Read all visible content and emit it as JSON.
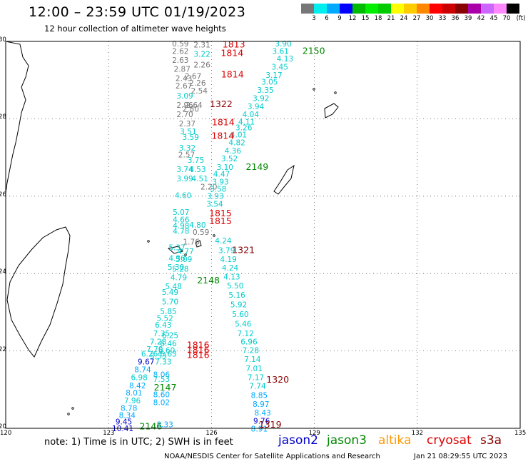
{
  "header": {
    "title": "12:00 – 23:59 UTC 01/19/2023",
    "subtitle": "12 hour collection of altimeter wave heights"
  },
  "colorbar": {
    "unit": "(ft)",
    "colors": [
      "#777777",
      "#00eeee",
      "#00aaff",
      "#0000ff",
      "#00bb00",
      "#00ee00",
      "#00cc00",
      "#ffff00",
      "#ffcc00",
      "#ff8800",
      "#ff0000",
      "#cc0000",
      "#880000",
      "#aa00aa",
      "#cc66ff",
      "#ff88ff",
      "#000000"
    ],
    "labels": [
      "3",
      "6",
      "9",
      "12",
      "15",
      "18",
      "21",
      "24",
      "27",
      "30",
      "33",
      "36",
      "39",
      "42",
      "45",
      "70"
    ]
  },
  "axes": {
    "lon_labels": [
      "120",
      "123",
      "126",
      "129",
      "132",
      "135"
    ],
    "lat_labels": [
      "30",
      "28",
      "26",
      "24",
      "22",
      "20"
    ]
  },
  "tracks": {
    "orbit_labels": [
      {
        "text": "1813",
        "color": "#dd0000",
        "lon": 126.32,
        "lat": 29.84
      },
      {
        "text": "1814",
        "color": "#dd0000",
        "lon": 126.27,
        "lat": 29.62
      },
      {
        "text": "2150",
        "color": "#008800",
        "lon": 128.65,
        "lat": 29.68
      },
      {
        "text": "1814",
        "color": "#dd0000",
        "lon": 126.28,
        "lat": 29.07
      },
      {
        "text": "1322",
        "color": "#880000",
        "lon": 125.95,
        "lat": 28.3
      },
      {
        "text": "1814",
        "color": "#dd0000",
        "lon": 126.01,
        "lat": 27.83
      },
      {
        "text": "1814",
        "color": "#dd0000",
        "lon": 126.0,
        "lat": 27.48
      },
      {
        "text": "2149",
        "color": "#008800",
        "lon": 127.0,
        "lat": 26.68
      },
      {
        "text": "1815",
        "color": "#dd0000",
        "lon": 125.93,
        "lat": 25.48
      },
      {
        "text": "1815",
        "color": "#dd0000",
        "lon": 125.93,
        "lat": 25.28
      },
      {
        "text": "1321",
        "color": "#880000",
        "lon": 126.6,
        "lat": 24.53
      },
      {
        "text": "2148",
        "color": "#008800",
        "lon": 125.58,
        "lat": 23.75
      },
      {
        "text": "1816",
        "color": "#dd0000",
        "lon": 125.28,
        "lat": 22.08
      },
      {
        "text": "1816",
        "color": "#dd0000",
        "lon": 125.28,
        "lat": 21.95
      },
      {
        "text": "1816",
        "color": "#dd0000",
        "lon": 125.28,
        "lat": 21.82
      },
      {
        "text": "1320",
        "color": "#880000",
        "lon": 127.6,
        "lat": 21.18
      },
      {
        "text": "2147",
        "color": "#008800",
        "lon": 124.32,
        "lat": 20.98
      },
      {
        "text": "2146",
        "color": "#008800",
        "lon": 123.9,
        "lat": 19.97
      },
      {
        "text": "1319",
        "color": "#880000",
        "lon": 127.38,
        "lat": 20.02
      }
    ],
    "track_a_top": [
      {
        "v": "0.59",
        "c": "#777777",
        "lon": 124.85,
        "lat": 29.87
      },
      {
        "v": "2.31",
        "c": "#777777",
        "lon": 125.48,
        "lat": 29.84
      },
      {
        "v": "2.62",
        "c": "#777777",
        "lon": 124.85,
        "lat": 29.68
      },
      {
        "v": "3.22",
        "c": "#00cccc",
        "lon": 125.48,
        "lat": 29.6
      },
      {
        "v": "2.63",
        "c": "#777777",
        "lon": 124.85,
        "lat": 29.45
      },
      {
        "v": "2.26",
        "c": "#777777",
        "lon": 125.48,
        "lat": 29.33
      },
      {
        "v": "2.87",
        "c": "#777777",
        "lon": 124.9,
        "lat": 29.22
      },
      {
        "v": "2.43",
        "c": "#777777",
        "lon": 124.95,
        "lat": 28.98
      },
      {
        "v": "2.67",
        "c": "#777777",
        "lon": 125.22,
        "lat": 29.03
      },
      {
        "v": "2.26",
        "c": "#777777",
        "lon": 125.35,
        "lat": 28.86
      },
      {
        "v": "2.67",
        "c": "#777777",
        "lon": 124.95,
        "lat": 28.78
      },
      {
        "v": "2.54",
        "c": "#777777",
        "lon": 125.4,
        "lat": 28.65
      },
      {
        "v": "3.09",
        "c": "#00cccc",
        "lon": 124.98,
        "lat": 28.52
      },
      {
        "v": "2.96",
        "c": "#777777",
        "lon": 124.98,
        "lat": 28.28
      },
      {
        "v": "2.64",
        "c": "#777777",
        "lon": 125.25,
        "lat": 28.28
      },
      {
        "v": "2.80",
        "c": "#777777",
        "lon": 125.15,
        "lat": 28.18
      },
      {
        "v": "2.70",
        "c": "#777777",
        "lon": 124.98,
        "lat": 28.04
      },
      {
        "v": "2.37",
        "c": "#777777",
        "lon": 125.05,
        "lat": 27.8
      },
      {
        "v": "3.51",
        "c": "#00cccc",
        "lon": 125.08,
        "lat": 27.6
      },
      {
        "v": "3.59",
        "c": "#00cccc",
        "lon": 125.15,
        "lat": 27.45
      },
      {
        "v": "3.32",
        "c": "#00cccc",
        "lon": 125.05,
        "lat": 27.18
      },
      {
        "v": "2.57",
        "c": "#777777",
        "lon": 125.03,
        "lat": 27.0
      },
      {
        "v": "3.75",
        "c": "#00cccc",
        "lon": 125.3,
        "lat": 26.86
      },
      {
        "v": "3.74",
        "c": "#00cccc",
        "lon": 124.98,
        "lat": 26.62
      },
      {
        "v": "4.53",
        "c": "#00cccc",
        "lon": 125.35,
        "lat": 26.62
      },
      {
        "v": "3.99",
        "c": "#00cccc",
        "lon": 124.98,
        "lat": 26.38
      },
      {
        "v": "4.51",
        "c": "#00cccc",
        "lon": 125.42,
        "lat": 26.38
      },
      {
        "v": "2.20",
        "c": "#777777",
        "lon": 125.68,
        "lat": 26.17
      },
      {
        "v": "4.60",
        "c": "#00cccc",
        "lon": 124.93,
        "lat": 25.95
      }
    ],
    "track_b": [
      {
        "v": "3.90",
        "c": "#00cccc",
        "lon": 127.85,
        "lat": 29.87
      },
      {
        "v": "3.61",
        "c": "#00cccc",
        "lon": 127.77,
        "lat": 29.68
      },
      {
        "v": "4.13",
        "c": "#00cccc",
        "lon": 127.9,
        "lat": 29.48
      },
      {
        "v": "3.45",
        "c": "#00cccc",
        "lon": 127.75,
        "lat": 29.27
      },
      {
        "v": "3.17",
        "c": "#00cccc",
        "lon": 127.58,
        "lat": 29.06
      },
      {
        "v": "3.05",
        "c": "#00cccc",
        "lon": 127.45,
        "lat": 28.88
      },
      {
        "v": "3.35",
        "c": "#00cccc",
        "lon": 127.33,
        "lat": 28.67
      },
      {
        "v": "3.92",
        "c": "#00cccc",
        "lon": 127.2,
        "lat": 28.46
      },
      {
        "v": "3.94",
        "c": "#00cccc",
        "lon": 127.05,
        "lat": 28.25
      },
      {
        "v": "4.04",
        "c": "#00cccc",
        "lon": 126.9,
        "lat": 28.04
      },
      {
        "v": "4.11",
        "c": "#00cccc",
        "lon": 126.78,
        "lat": 27.85
      },
      {
        "v": "3.26",
        "c": "#00cccc",
        "lon": 126.7,
        "lat": 27.7
      },
      {
        "v": "4.01",
        "c": "#00cccc",
        "lon": 126.55,
        "lat": 27.52
      },
      {
        "v": "4.82",
        "c": "#00cccc",
        "lon": 126.5,
        "lat": 27.32
      },
      {
        "v": "4.36",
        "c": "#00cccc",
        "lon": 126.38,
        "lat": 27.1
      },
      {
        "v": "3.52",
        "c": "#00cccc",
        "lon": 126.28,
        "lat": 26.9
      },
      {
        "v": "3.10",
        "c": "#00cccc",
        "lon": 126.15,
        "lat": 26.68
      },
      {
        "v": "4.47",
        "c": "#00cccc",
        "lon": 126.05,
        "lat": 26.5
      },
      {
        "v": "3.93",
        "c": "#00cccc",
        "lon": 126.02,
        "lat": 26.3
      },
      {
        "v": "3.58",
        "c": "#00cccc",
        "lon": 125.95,
        "lat": 26.12
      },
      {
        "v": "3.93",
        "c": "#00cccc",
        "lon": 125.87,
        "lat": 25.93
      },
      {
        "v": "3.54",
        "c": "#00cccc",
        "lon": 125.85,
        "lat": 25.73
      },
      {
        "v": "4.24",
        "c": "#00cccc",
        "lon": 126.1,
        "lat": 24.78
      },
      {
        "v": "3.79",
        "c": "#00cccc",
        "lon": 126.2,
        "lat": 24.53
      },
      {
        "v": "4.19",
        "c": "#00cccc",
        "lon": 126.25,
        "lat": 24.3
      },
      {
        "v": "4.24",
        "c": "#00cccc",
        "lon": 126.3,
        "lat": 24.08
      },
      {
        "v": "4.13",
        "c": "#00cccc",
        "lon": 126.35,
        "lat": 23.85
      },
      {
        "v": "5.50",
        "c": "#00cccc",
        "lon": 126.45,
        "lat": 23.62
      },
      {
        "v": "5.16",
        "c": "#00cccc",
        "lon": 126.5,
        "lat": 23.38
      },
      {
        "v": "5.92",
        "c": "#00cccc",
        "lon": 126.55,
        "lat": 23.13
      },
      {
        "v": "5.60",
        "c": "#00cccc",
        "lon": 126.6,
        "lat": 22.88
      },
      {
        "v": "5.46",
        "c": "#00cccc",
        "lon": 126.68,
        "lat": 22.63
      },
      {
        "v": "7.12",
        "c": "#00cccc",
        "lon": 126.75,
        "lat": 22.38
      },
      {
        "v": "6.96",
        "c": "#00cccc",
        "lon": 126.85,
        "lat": 22.17
      },
      {
        "v": "7.28",
        "c": "#00cccc",
        "lon": 126.9,
        "lat": 21.95
      },
      {
        "v": "7.14",
        "c": "#00cccc",
        "lon": 126.95,
        "lat": 21.72
      },
      {
        "v": "7.01",
        "c": "#00cccc",
        "lon": 127.0,
        "lat": 21.48
      },
      {
        "v": "7.17",
        "c": "#00cccc",
        "lon": 127.05,
        "lat": 21.25
      },
      {
        "v": "7.74",
        "c": "#00cccc",
        "lon": 127.1,
        "lat": 21.02
      },
      {
        "v": "8.85",
        "c": "#00aaff",
        "lon": 127.15,
        "lat": 20.78
      },
      {
        "v": "8.97",
        "c": "#00aaff",
        "lon": 127.2,
        "lat": 20.55
      },
      {
        "v": "8.43",
        "c": "#00aaff",
        "lon": 127.25,
        "lat": 20.33
      },
      {
        "v": "9.76",
        "c": "#0000cc",
        "lon": 127.22,
        "lat": 20.12
      },
      {
        "v": "8.91",
        "c": "#00aaff",
        "lon": 127.15,
        "lat": 19.92
      }
    ],
    "track_c": [
      {
        "v": "5.07",
        "c": "#00cccc",
        "lon": 124.87,
        "lat": 25.52
      },
      {
        "v": "4.66",
        "c": "#00cccc",
        "lon": 124.87,
        "lat": 25.32
      },
      {
        "v": "4.98",
        "c": "#00cccc",
        "lon": 124.87,
        "lat": 25.17
      },
      {
        "v": "4.78",
        "c": "#00cccc",
        "lon": 124.87,
        "lat": 25.03
      },
      {
        "v": "4.80",
        "c": "#00cccc",
        "lon": 125.35,
        "lat": 25.18
      },
      {
        "v": "0.59",
        "c": "#777777",
        "lon": 125.45,
        "lat": 25.0
      },
      {
        "v": "1.76",
        "c": "#777777",
        "lon": 125.17,
        "lat": 24.75
      },
      {
        "v": "4.77",
        "c": "#00cccc",
        "lon": 125.0,
        "lat": 24.5
      },
      {
        "v": "5.37",
        "c": "#00cccc",
        "lon": 124.75,
        "lat": 24.6
      },
      {
        "v": "4.36",
        "c": "#00cccc",
        "lon": 124.75,
        "lat": 24.33
      },
      {
        "v": "5.09",
        "c": "#00cccc",
        "lon": 124.95,
        "lat": 24.3
      },
      {
        "v": "5.30",
        "c": "#00cccc",
        "lon": 124.72,
        "lat": 24.1
      },
      {
        "v": "5.28",
        "c": "#00cccc",
        "lon": 124.85,
        "lat": 24.05
      },
      {
        "v": "4.79",
        "c": "#00cccc",
        "lon": 124.8,
        "lat": 23.83
      },
      {
        "v": "5.48",
        "c": "#00cccc",
        "lon": 124.65,
        "lat": 23.6
      },
      {
        "v": "5.49",
        "c": "#00cccc",
        "lon": 124.55,
        "lat": 23.45
      },
      {
        "v": "5.70",
        "c": "#00cccc",
        "lon": 124.55,
        "lat": 23.2
      },
      {
        "v": "5.85",
        "c": "#00cccc",
        "lon": 124.5,
        "lat": 22.95
      },
      {
        "v": "5.52",
        "c": "#00cccc",
        "lon": 124.4,
        "lat": 22.78
      },
      {
        "v": "6.43",
        "c": "#00cccc",
        "lon": 124.35,
        "lat": 22.6
      },
      {
        "v": "7.35",
        "c": "#00cccc",
        "lon": 124.3,
        "lat": 22.38
      },
      {
        "v": "6.25",
        "c": "#00cccc",
        "lon": 124.55,
        "lat": 22.33
      },
      {
        "v": "7.28",
        "c": "#00cccc",
        "lon": 124.2,
        "lat": 22.17
      },
      {
        "v": "6.46",
        "c": "#00cccc",
        "lon": 124.5,
        "lat": 22.12
      },
      {
        "v": "7.70",
        "c": "#00cccc",
        "lon": 124.1,
        "lat": 21.97
      },
      {
        "v": "6.60",
        "c": "#00cccc",
        "lon": 124.45,
        "lat": 21.95
      },
      {
        "v": "6.26",
        "c": "#00cccc",
        "lon": 123.95,
        "lat": 21.85
      },
      {
        "v": "5.53",
        "c": "#00cccc",
        "lon": 124.2,
        "lat": 21.8
      },
      {
        "v": "6.63",
        "c": "#00cccc",
        "lon": 124.5,
        "lat": 21.85
      },
      {
        "v": "9.67",
        "c": "#0000cc",
        "lon": 123.85,
        "lat": 21.65
      },
      {
        "v": "7.33",
        "c": "#00cccc",
        "lon": 124.35,
        "lat": 21.65
      },
      {
        "v": "8.74",
        "c": "#00aaff",
        "lon": 123.75,
        "lat": 21.45
      },
      {
        "v": "8.06",
        "c": "#00aaff",
        "lon": 124.3,
        "lat": 21.32
      },
      {
        "v": "6.98",
        "c": "#00cccc",
        "lon": 123.65,
        "lat": 21.25
      },
      {
        "v": "7.53",
        "c": "#00cccc",
        "lon": 124.3,
        "lat": 21.2
      },
      {
        "v": "8.42",
        "c": "#00aaff",
        "lon": 123.6,
        "lat": 21.03
      },
      {
        "v": "8.01",
        "c": "#00aaff",
        "lon": 123.5,
        "lat": 20.85
      },
      {
        "v": "8.60",
        "c": "#00aaff",
        "lon": 124.3,
        "lat": 20.8
      },
      {
        "v": "7.96",
        "c": "#00cccc",
        "lon": 123.45,
        "lat": 20.65
      },
      {
        "v": "8.02",
        "c": "#00aaff",
        "lon": 124.3,
        "lat": 20.6
      },
      {
        "v": "8.78",
        "c": "#00aaff",
        "lon": 123.35,
        "lat": 20.45
      },
      {
        "v": "8.34",
        "c": "#00aaff",
        "lon": 123.3,
        "lat": 20.27
      },
      {
        "v": "9.45",
        "c": "#0000cc",
        "lon": 123.2,
        "lat": 20.1
      },
      {
        "v": "8.33",
        "c": "#00aaff",
        "lon": 124.4,
        "lat": 20.03
      },
      {
        "v": "10.41",
        "c": "#0000cc",
        "lon": 123.1,
        "lat": 19.93
      }
    ]
  },
  "footer": {
    "note": "note: 1) Time is in UTC; 2) SWH is in feet",
    "legend": [
      {
        "label": "jason2",
        "color": "#0000cc"
      },
      {
        "label": "jason3",
        "color": "#008800"
      },
      {
        "label": "altika",
        "color": "#ff9900"
      },
      {
        "label": "cryosat",
        "color": "#dd0000"
      },
      {
        "label": "s3a",
        "color": "#880000"
      }
    ],
    "credit": "NOAA/NESDIS Center for Satellite Applications and Research",
    "timestamp": "Jan 21 08:29:55 UTC 2023"
  }
}
